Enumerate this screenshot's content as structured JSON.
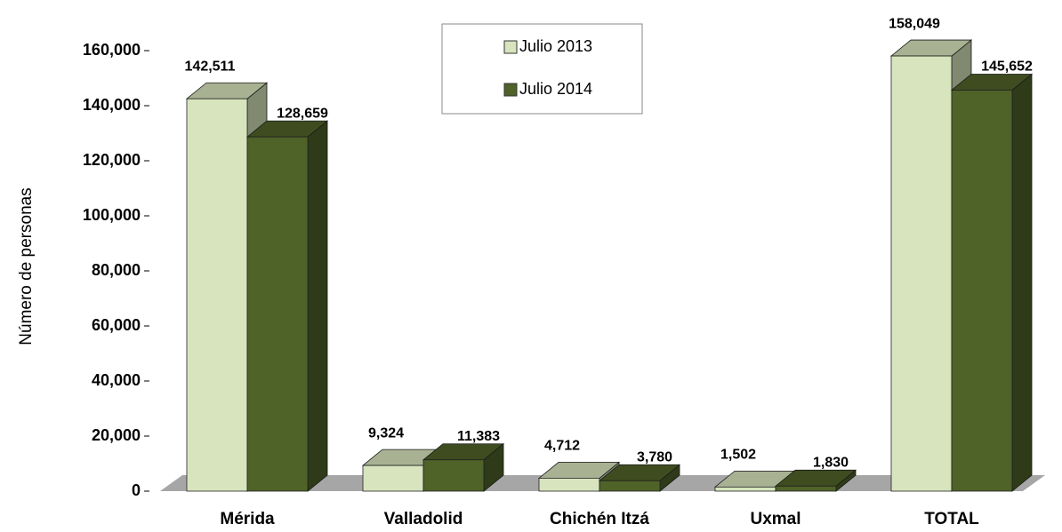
{
  "chart_data": {
    "type": "bar3d",
    "y_axis_label": "Número de personas",
    "categories": [
      "Mérida",
      "Valladolid",
      "Chichén Itzá",
      "Uxmal",
      "TOTAL"
    ],
    "series": [
      {
        "name": "Julio 2013",
        "color": "#d7e4bd",
        "values": [
          142511,
          9324,
          4712,
          1502,
          158049
        ],
        "value_labels": [
          "142,511",
          "9,324",
          "4,712",
          "1,502",
          "158,049"
        ]
      },
      {
        "name": "Julio 2014",
        "color": "#4f6228",
        "values": [
          128659,
          11383,
          3780,
          1830,
          145652
        ],
        "value_labels": [
          "128,659",
          "11,383",
          "3,780",
          "1,830",
          "145,652"
        ]
      }
    ],
    "ylim": [
      0,
      160000
    ],
    "yticks": [
      0,
      {
        "value": 20000,
        "label": "20,000"
      },
      {
        "value": 40000,
        "label": "40,000"
      },
      {
        "value": 60000,
        "label": "60,000"
      },
      {
        "value": 80000,
        "label": "80,000"
      },
      {
        "value": 100000,
        "label": "100,000"
      },
      {
        "value": 120000,
        "label": "120,000"
      },
      {
        "value": 140000,
        "label": "140,000"
      },
      {
        "value": 160000,
        "label": "160,000"
      }
    ],
    "legend": "top-center"
  }
}
